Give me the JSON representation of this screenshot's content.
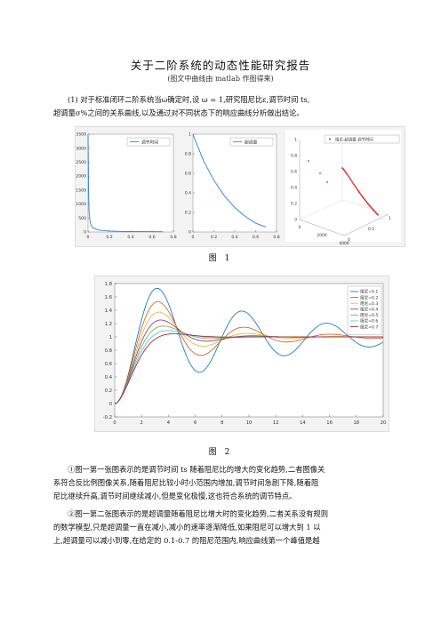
{
  "doc": {
    "title": "关于二阶系统的动态性能研究报告",
    "subtitle": "(图文中曲线由 matlab 作图得来)",
    "intro_line1": "(1) 对于标准闭环二阶系统当ω确定时,设 ω = 1,研究阻尼比ε,调节时间 ts,",
    "intro_line2": "超调量σ%之间的关系曲线,以及通过对不同状态下的响应曲线分析做出结论。",
    "fig1_caption": "图 1",
    "fig2_caption": "图 2",
    "p1_line1": "①图一第一张图表示的是调节时间 ts 随着阻尼比的增大的变化趋势,二者图像关",
    "p1_line2": "系符合反比例图像关系,随着阻尼比较小时小范围内增加,调节时间急剧下降,随着阻",
    "p1_line3": "尼比继续升高,调节时间继续减小,但是变化极慢,这也符合系统的调节特点。",
    "p2_line1": "②图一第二张图表示的是超调量随着阻尼比增大时的变化趋势,二者关系没有规则",
    "p2_line2": "的数学模型,只是超调量一直在减小,减小的速率逐渐降低,如果阻尼可以增大到 1 以",
    "p2_line3": "上,超调量可以减小到零,在给定的 0.1-0.7 的阻尼范围内,响应曲线第一个峰值是越"
  },
  "figure1": {
    "chart_data": [
      {
        "type": "line",
        "legend": [
          "调节时间"
        ],
        "x_ticks": [
          "0",
          "0.2",
          "0.4",
          "0.6",
          "0.8"
        ],
        "y_ticks": [
          "0",
          "500",
          "1000",
          "1500",
          "2000",
          "2500",
          "3000",
          "3500"
        ],
        "xlim": [
          0,
          0.8
        ],
        "ylim": [
          0,
          3500
        ],
        "series": [
          {
            "name": "调节时间",
            "x": [
              0.0,
              0.005,
              0.01,
              0.02,
              0.03,
              0.05,
              0.1,
              0.2,
              0.3,
              0.5,
              0.7
            ],
            "y": [
              3500,
              1400,
              700,
              350,
              233,
              140,
              70,
              35,
              23,
              14,
              10
            ]
          }
        ]
      },
      {
        "type": "line",
        "legend": [
          "超调量"
        ],
        "x_ticks": [
          "0",
          "0.2",
          "0.4",
          "0.6",
          "0.8"
        ],
        "y_ticks": [
          "0",
          "0.2",
          "0.4",
          "0.6",
          "0.8",
          "1"
        ],
        "xlim": [
          0,
          0.8
        ],
        "ylim": [
          0,
          1
        ],
        "series": [
          {
            "name": "超调量",
            "x": [
              0.0,
              0.1,
              0.2,
              0.3,
              0.4,
              0.5,
              0.6,
              0.7
            ],
            "y": [
              1.0,
              0.73,
              0.53,
              0.37,
              0.25,
              0.16,
              0.09,
              0.05
            ]
          }
        ]
      },
      {
        "type": "scatter",
        "legend": [
          "阻尼-超调量-调节时间"
        ],
        "z_ticks": [
          "0",
          "0.2",
          "0.4",
          "0.6",
          "0.8",
          "1"
        ],
        "x_ticks": [
          "0",
          "2000",
          "4000"
        ],
        "y_ticks": [
          "0",
          "0.5",
          "1"
        ]
      }
    ]
  },
  "figure2": {
    "chart_data": {
      "type": "line",
      "xlim": [
        0,
        20
      ],
      "ylim": [
        -0.2,
        1.8
      ],
      "x_ticks": [
        "0",
        "2",
        "4",
        "6",
        "8",
        "10",
        "12",
        "14",
        "16",
        "18",
        "20"
      ],
      "y_ticks": [
        "-0.2",
        "0",
        "0.2",
        "0.4",
        "0.6",
        "0.8",
        "1",
        "1.2",
        "1.4",
        "1.6",
        "1.8"
      ],
      "zetas": [
        0.1,
        0.2,
        0.3,
        0.4,
        0.5,
        0.6,
        0.7
      ],
      "colors": [
        "#0072bd",
        "#d95319",
        "#edb120",
        "#7e2f8e",
        "#77ac30",
        "#4dbeee",
        "#a2142f"
      ],
      "legend": [
        "阻尼=0.1",
        "阻尼=0.2",
        "阻尼=0.3",
        "阻尼=0.4",
        "阻尼=0.5",
        "阻尼=0.6",
        "阻尼=0.7"
      ]
    }
  }
}
